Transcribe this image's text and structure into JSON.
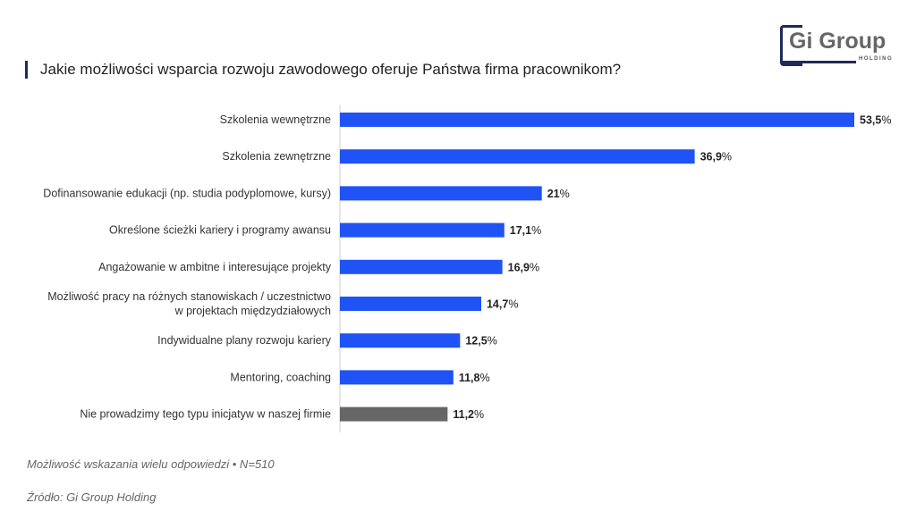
{
  "title": "Jakie możliwości wsparcia rozwoju zawodowego oferuje Państwa firma pracownikom?",
  "logo": {
    "name": "Gi Group",
    "sub": "HOLDING"
  },
  "note": "Możliwość wskazania wielu odpowiedzi • N=510",
  "source": "Źródło: Gi Group Holding",
  "chart_data": {
    "type": "bar",
    "orientation": "horizontal",
    "unit": "%",
    "categories": [
      [
        "Szkolenia wewnętrzne"
      ],
      [
        "Szkolenia zewnętrzne"
      ],
      [
        "Dofinansowanie edukacji (np. studia podyplomowe, kursy)"
      ],
      [
        "Określone ścieżki kariery i programy awansu"
      ],
      [
        "Angażowanie w ambitne i interesujące projekty"
      ],
      [
        "Możliwość pracy na różnych stanowiskach / uczestnictwo",
        "w projektach międzydziałowych"
      ],
      [
        "Indywidualne plany rozwoju kariery"
      ],
      [
        "Mentoring, coaching"
      ],
      [
        "Nie prowadzimy tego typu inicjatyw w naszej firmie"
      ]
    ],
    "values": [
      53.5,
      36.9,
      21,
      17.1,
      16.9,
      14.7,
      12.5,
      11.8,
      11.2
    ],
    "labels": [
      "53,5",
      "36,9",
      "21",
      "17,1",
      "16,9",
      "14,7",
      "12,5",
      "11,8",
      "11,2"
    ],
    "colors": [
      "#1f53f5",
      "#1f53f5",
      "#1f53f5",
      "#1f53f5",
      "#1f53f5",
      "#1f53f5",
      "#1f53f5",
      "#1f53f5",
      "#666666"
    ],
    "xlim": [
      0,
      53.5
    ]
  }
}
